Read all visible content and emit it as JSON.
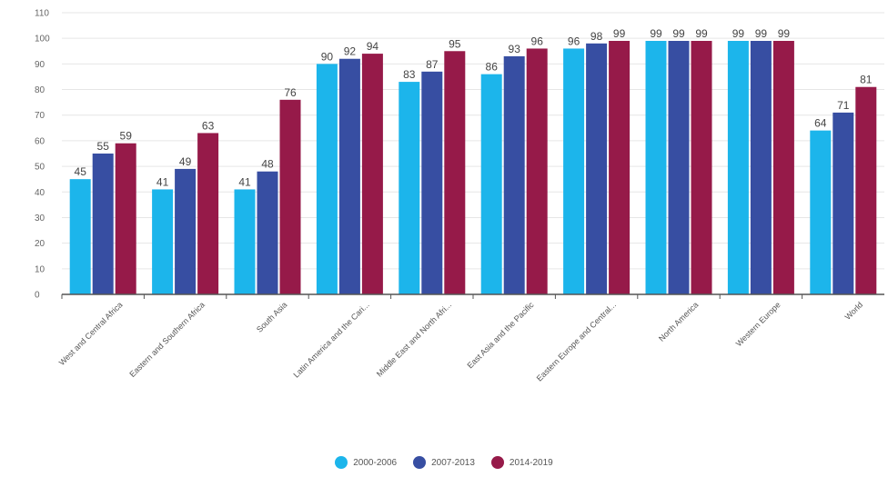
{
  "chart_data": {
    "type": "bar",
    "title": "",
    "xlabel": "",
    "ylabel": "",
    "ylim": [
      0,
      110
    ],
    "yticks": [
      0,
      10,
      20,
      30,
      40,
      50,
      60,
      70,
      80,
      90,
      100,
      110
    ],
    "grid": true,
    "legend_position": "bottom",
    "categories": [
      "West and Central Africa",
      "Eastern and Southern Africa",
      "South Asia",
      "Latin America and the Cari...",
      "Middle East and North Afri...",
      "East Asia and the Pacific",
      "Eastern Europe and Central...",
      "North America",
      "Western Europe",
      "World"
    ],
    "series": [
      {
        "name": "2000-2006",
        "color": "#1cb5eb",
        "values": [
          45,
          41,
          41,
          90,
          83,
          86,
          96,
          99,
          99,
          64
        ]
      },
      {
        "name": "2007-2013",
        "color": "#374ea2",
        "values": [
          55,
          49,
          48,
          92,
          87,
          93,
          98,
          99,
          99,
          71
        ]
      },
      {
        "name": "2014-2019",
        "color": "#961a49",
        "values": [
          59,
          63,
          76,
          94,
          95,
          96,
          99,
          99,
          99,
          81
        ]
      }
    ]
  }
}
